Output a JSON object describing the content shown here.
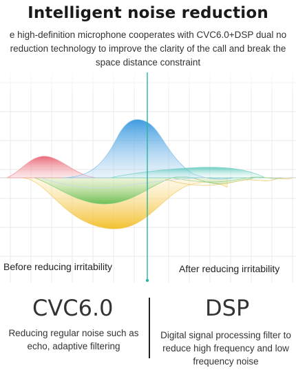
{
  "title": "Intelligent noise reduction",
  "subtitle": {
    "line1": "e high-definition microphone cooperates with CVC6.0+DSP dual no",
    "line2": "reduction technology to improve the clarity of the call and break the",
    "line3": "space distance constraint"
  },
  "graph": {
    "left_label": "Before reducing irritability",
    "right_label": "After reducing irritability",
    "colors": {
      "red": "#e9707a",
      "blue": "#3e9ee0",
      "green": "#66c05a",
      "yellow": "#f2c232",
      "teal": "#2fb8a6",
      "divider": "#2bb3a0"
    }
  },
  "tech_left": {
    "name": "CVC6.0",
    "description": "Reducing regular noise such as echo, adaptive filtering"
  },
  "tech_right": {
    "name": "DSP",
    "description": "Digital signal processing filter to reduce high frequency and low frequency noise"
  }
}
